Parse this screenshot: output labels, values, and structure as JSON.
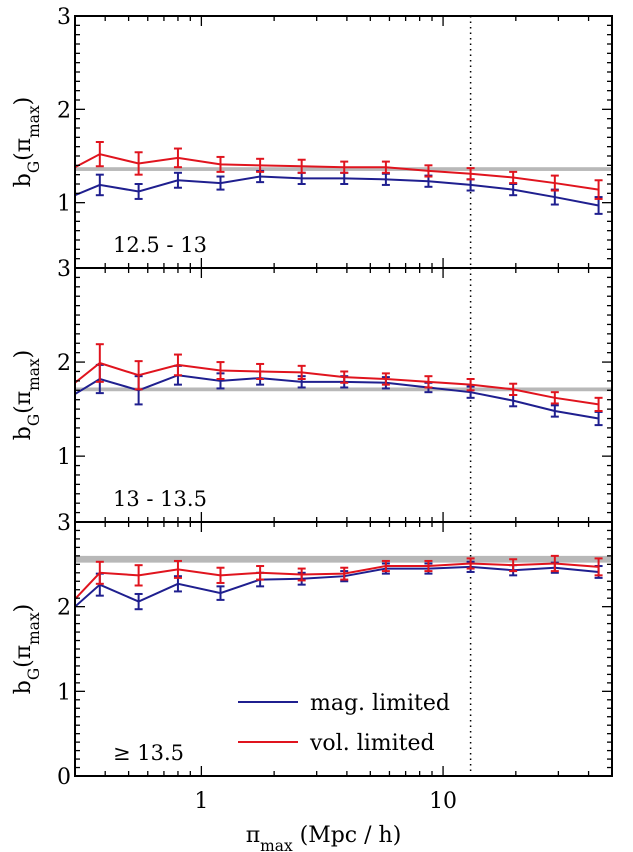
{
  "chart_data": [
    {
      "type": "line",
      "panel_label": "12.5 - 13",
      "ylabel": "b",
      "ylabel_sub": "G",
      "ylabel_paren": "(π",
      "ylabel_paren_sub": "max",
      "ylabel_close": ")",
      "ylim": [
        0.3,
        3.0
      ],
      "y_ticks": [
        "3",
        "2",
        "1"
      ],
      "xscale": "log",
      "xlim": [
        0.3,
        50
      ],
      "reference_band": {
        "low": 1.34,
        "high": 1.38
      },
      "vline_x": 13,
      "series": [
        {
          "name": "mag. limited",
          "color": "#1f1f8f",
          "x": [
            0.3,
            0.38,
            0.55,
            0.8,
            1.2,
            1.75,
            2.6,
            3.9,
            5.8,
            8.7,
            13,
            19.5,
            29,
            44
          ],
          "y": [
            1.08,
            1.19,
            1.12,
            1.24,
            1.21,
            1.28,
            1.26,
            1.26,
            1.25,
            1.23,
            1.19,
            1.14,
            1.06,
            0.97
          ],
          "err": [
            0.0,
            0.11,
            0.08,
            0.08,
            0.07,
            0.06,
            0.06,
            0.06,
            0.06,
            0.06,
            0.06,
            0.06,
            0.08,
            0.09
          ]
        },
        {
          "name": "vol. limited",
          "color": "#e0141e",
          "x": [
            0.3,
            0.38,
            0.55,
            0.8,
            1.2,
            1.75,
            2.6,
            3.9,
            5.8,
            8.7,
            13,
            19.5,
            29,
            44
          ],
          "y": [
            1.38,
            1.52,
            1.42,
            1.48,
            1.41,
            1.4,
            1.39,
            1.38,
            1.38,
            1.34,
            1.31,
            1.27,
            1.21,
            1.14
          ],
          "err": [
            0.0,
            0.13,
            0.12,
            0.1,
            0.08,
            0.07,
            0.07,
            0.06,
            0.06,
            0.06,
            0.06,
            0.06,
            0.08,
            0.1
          ]
        }
      ]
    },
    {
      "type": "line",
      "panel_label": "13 - 13.5",
      "ylabel": "b",
      "ylabel_sub": "G",
      "ylabel_paren": "(π",
      "ylabel_paren_sub": "max",
      "ylabel_close": ")",
      "ylim": [
        0.3,
        3.0
      ],
      "y_ticks": [
        "3",
        "2",
        "1"
      ],
      "xscale": "log",
      "xlim": [
        0.3,
        50
      ],
      "reference_band": {
        "low": 1.69,
        "high": 1.73
      },
      "vline_x": 13,
      "series": [
        {
          "name": "mag. limited",
          "color": "#1f1f8f",
          "x": [
            0.3,
            0.38,
            0.55,
            0.8,
            1.2,
            1.75,
            2.6,
            3.9,
            5.8,
            8.7,
            13,
            19.5,
            29,
            44
          ],
          "y": [
            1.66,
            1.82,
            1.7,
            1.86,
            1.8,
            1.83,
            1.79,
            1.79,
            1.78,
            1.73,
            1.68,
            1.59,
            1.48,
            1.4
          ],
          "err": [
            0.0,
            0.15,
            0.15,
            0.1,
            0.08,
            0.07,
            0.06,
            0.06,
            0.06,
            0.05,
            0.06,
            0.06,
            0.06,
            0.07
          ]
        },
        {
          "name": "vol. limited",
          "color": "#e0141e",
          "x": [
            0.3,
            0.38,
            0.55,
            0.8,
            1.2,
            1.75,
            2.6,
            3.9,
            5.8,
            8.7,
            13,
            19.5,
            29,
            44
          ],
          "y": [
            1.78,
            1.99,
            1.86,
            1.97,
            1.91,
            1.9,
            1.89,
            1.84,
            1.82,
            1.79,
            1.76,
            1.71,
            1.62,
            1.55
          ],
          "err": [
            0.0,
            0.2,
            0.15,
            0.11,
            0.09,
            0.08,
            0.07,
            0.06,
            0.06,
            0.06,
            0.06,
            0.06,
            0.06,
            0.07
          ]
        }
      ]
    },
    {
      "type": "line",
      "panel_label": "≥ 13.5",
      "ylabel": "b",
      "ylabel_sub": "G",
      "ylabel_paren": "(π",
      "ylabel_paren_sub": "max",
      "ylabel_close": ")",
      "ylim": [
        0.0,
        3.0
      ],
      "y_ticks": [
        "3",
        "2",
        "1",
        "0"
      ],
      "xscale": "log",
      "xlim": [
        0.3,
        50
      ],
      "x_ticks": [
        "1",
        "10"
      ],
      "xlabel": "π",
      "xlabel_sub": "max",
      "xlabel_unit": " (Mpc / h)",
      "reference_band": {
        "low": 2.52,
        "high": 2.6
      },
      "vline_x": 13,
      "legend": {
        "position": "bottom-center",
        "entries": [
          "mag. limited",
          "vol. limited"
        ]
      },
      "series": [
        {
          "name": "mag. limited",
          "color": "#1f1f8f",
          "x": [
            0.3,
            0.38,
            0.55,
            0.8,
            1.2,
            1.75,
            2.6,
            3.9,
            5.8,
            8.7,
            13,
            19.5,
            29,
            44
          ],
          "y": [
            2.0,
            2.26,
            2.06,
            2.27,
            2.16,
            2.32,
            2.33,
            2.36,
            2.45,
            2.45,
            2.47,
            2.43,
            2.46,
            2.41
          ],
          "err": [
            0.0,
            0.13,
            0.09,
            0.09,
            0.08,
            0.08,
            0.07,
            0.06,
            0.06,
            0.06,
            0.06,
            0.06,
            0.06,
            0.07
          ]
        },
        {
          "name": "vol. limited",
          "color": "#e0141e",
          "x": [
            0.3,
            0.38,
            0.55,
            0.8,
            1.2,
            1.75,
            2.6,
            3.9,
            5.8,
            8.7,
            13,
            19.5,
            29,
            44
          ],
          "y": [
            2.09,
            2.4,
            2.37,
            2.44,
            2.37,
            2.4,
            2.38,
            2.39,
            2.48,
            2.48,
            2.51,
            2.49,
            2.51,
            2.47
          ],
          "err": [
            0.0,
            0.13,
            0.12,
            0.1,
            0.09,
            0.08,
            0.07,
            0.07,
            0.06,
            0.06,
            0.06,
            0.07,
            0.09,
            0.1
          ]
        }
      ]
    }
  ]
}
